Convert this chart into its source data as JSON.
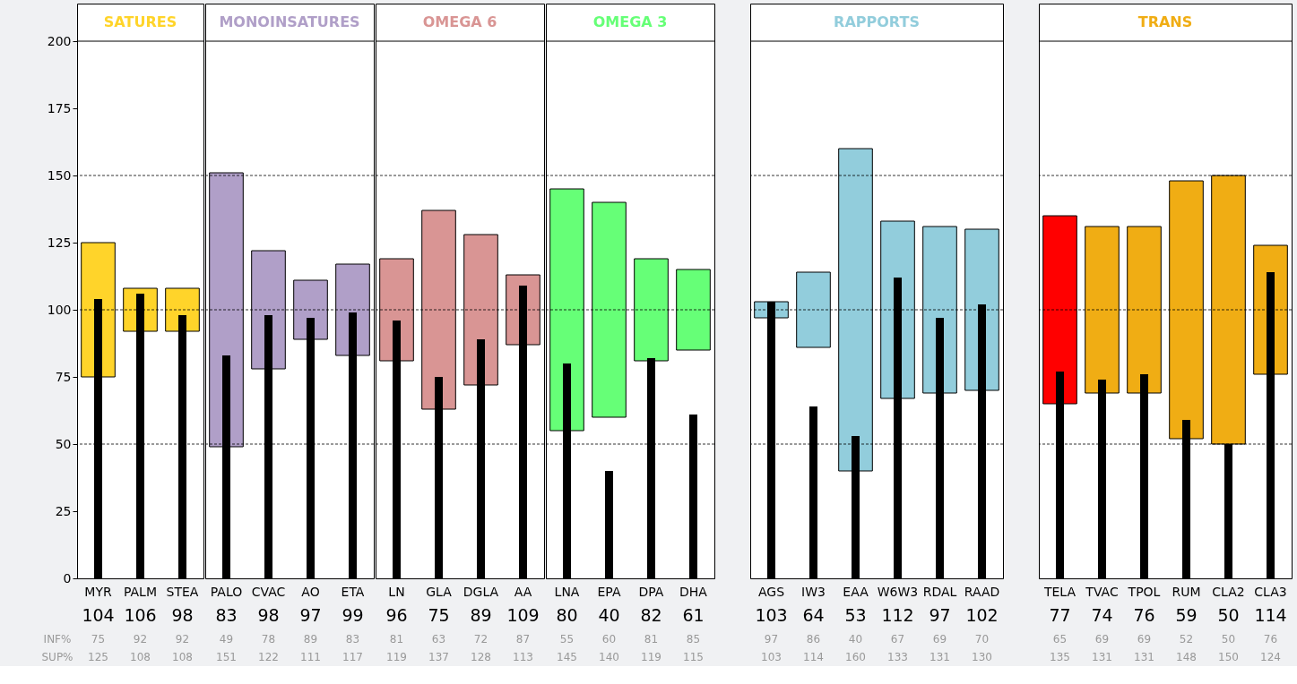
{
  "chart_data": [
    {
      "type": "bar",
      "title": "SATURES",
      "categories": [
        "MYR",
        "PALM",
        "STEA"
      ],
      "ylim": [
        0,
        200
      ],
      "yticks": [
        0,
        25,
        50,
        75,
        100,
        125,
        150,
        175,
        200
      ],
      "ref_lines": [
        {
          "axis": "y",
          "value": 50,
          "line_style": "dashed"
        },
        {
          "axis": "y",
          "value": 100,
          "line_style": "dashed"
        },
        {
          "axis": "y",
          "value": 150,
          "line_style": "dashed"
        }
      ],
      "series": [
        {
          "color": "#ffd42a",
          "base": [
            75,
            92,
            92
          ],
          "values": [
            50,
            16,
            16
          ]
        },
        {
          "color": "#000000",
          "values": [
            104,
            106,
            98
          ],
          "value_labels": [
            "104",
            "106",
            "98"
          ]
        }
      ],
      "annotations": [
        "INF%",
        "SUP%",
        "75",
        "92",
        "92",
        "125",
        "108",
        "108"
      ]
    },
    {
      "type": "bar",
      "title": "MONOINSATURES",
      "categories": [
        "PALO",
        "CVAC",
        "AO",
        "ETA"
      ],
      "ylim": [
        0,
        200
      ],
      "tick_labels": "x",
      "ref_lines": [
        {
          "axis": "y",
          "value": 50,
          "line_style": "dashed"
        },
        {
          "axis": "y",
          "value": 100,
          "line_style": "dashed"
        },
        {
          "axis": "y",
          "value": 150,
          "line_style": "dashed"
        }
      ],
      "series": [
        {
          "color": "#b09fc8",
          "base": [
            49,
            78,
            89,
            83
          ],
          "values": [
            102,
            44,
            22,
            34
          ]
        },
        {
          "color": "#000000",
          "values": [
            83,
            98,
            97,
            99
          ],
          "value_labels": [
            "83",
            "98",
            "97",
            "99"
          ]
        }
      ],
      "annotations": [
        "49",
        "78",
        "89",
        "83",
        "151",
        "122",
        "111",
        "117"
      ]
    },
    {
      "type": "bar",
      "title": "OMEGA 6",
      "categories": [
        "LN",
        "GLA",
        "DGLA",
        "AA"
      ],
      "ylim": [
        0,
        200
      ],
      "tick_labels": "x",
      "ref_lines": [
        {
          "axis": "y",
          "value": 50,
          "line_style": "dashed"
        },
        {
          "axis": "y",
          "value": 100,
          "line_style": "dashed"
        },
        {
          "axis": "y",
          "value": 150,
          "line_style": "dashed"
        }
      ],
      "series": [
        {
          "color": "#d99594",
          "base": [
            81,
            63,
            72,
            87
          ],
          "values": [
            38,
            74,
            56,
            26
          ]
        },
        {
          "color": "#000000",
          "values": [
            96,
            75,
            89,
            109
          ],
          "value_labels": [
            "96",
            "75",
            "89",
            "109"
          ]
        }
      ],
      "annotations": [
        "81",
        "63",
        "72",
        "87",
        "119",
        "137",
        "128",
        "113"
      ]
    },
    {
      "type": "bar",
      "title": "OMEGA 3",
      "categories": [
        "LNA",
        "EPA",
        "DPA",
        "DHA"
      ],
      "ylim": [
        0,
        200
      ],
      "tick_labels": "x",
      "ref_lines": [
        {
          "axis": "y",
          "value": 50,
          "line_style": "dashed"
        },
        {
          "axis": "y",
          "value": 100,
          "line_style": "dashed"
        },
        {
          "axis": "y",
          "value": 150,
          "line_style": "dashed"
        }
      ],
      "series": [
        {
          "color": "#66ff77",
          "base": [
            55,
            60,
            81,
            85
          ],
          "values": [
            90,
            80,
            38,
            30
          ]
        },
        {
          "color": "#000000",
          "values": [
            80,
            40,
            82,
            61
          ],
          "value_labels": [
            "80",
            "40",
            "82",
            "61"
          ]
        }
      ],
      "annotations": [
        "55",
        "60",
        "81",
        "85",
        "145",
        "140",
        "119",
        "115"
      ]
    },
    {
      "type": "bar",
      "title": "RAPPORTS",
      "categories": [
        "AGS",
        "IW3",
        "EAA",
        "W6W3",
        "RDAL",
        "RAAD"
      ],
      "ylim": [
        0,
        200
      ],
      "tick_labels": "x",
      "ref_lines": [
        {
          "axis": "y",
          "value": 50,
          "line_style": "dashed"
        },
        {
          "axis": "y",
          "value": 100,
          "line_style": "dashed"
        },
        {
          "axis": "y",
          "value": 150,
          "line_style": "dashed"
        }
      ],
      "series": [
        {
          "color": "#92cddc",
          "base": [
            97,
            86,
            40,
            67,
            69,
            70
          ],
          "values": [
            6,
            28,
            120,
            66,
            62,
            60
          ]
        },
        {
          "color": "#000000",
          "values": [
            103,
            64,
            53,
            112,
            97,
            102
          ],
          "value_labels": [
            "103",
            "64",
            "53",
            "112",
            "97",
            "102"
          ]
        }
      ],
      "annotations": [
        "97",
        "86",
        "40",
        "67",
        "69",
        "70",
        "103",
        "114",
        "160",
        "133",
        "131",
        "130"
      ]
    },
    {
      "type": "bar",
      "title": "TRANS",
      "categories": [
        "TELA",
        "TVAC",
        "TPOL",
        "RUM",
        "CLA2",
        "CLA3"
      ],
      "ylim": [
        0,
        200
      ],
      "tick_labels": "x",
      "ref_lines": [
        {
          "axis": "y",
          "value": 50,
          "line_style": "dashed"
        },
        {
          "axis": "y",
          "value": 100,
          "line_style": "dashed"
        },
        {
          "axis": "y",
          "value": 150,
          "line_style": "dashed"
        }
      ],
      "series": [
        {
          "colors": [
            "#ff0000",
            "#f0ad14",
            "#f0ad14",
            "#f0ad14",
            "#f0ad14",
            "#f0ad14"
          ],
          "base": [
            65,
            69,
            69,
            52,
            50,
            76
          ],
          "values": [
            70,
            62,
            62,
            96,
            100,
            48
          ]
        },
        {
          "color": "#000000",
          "values": [
            77,
            74,
            76,
            59,
            50,
            114
          ],
          "value_labels": [
            "77",
            "74",
            "76",
            "59",
            "50",
            "114"
          ]
        }
      ],
      "annotations": [
        "65",
        "69",
        "69",
        "52",
        "50",
        "76",
        "135",
        "131",
        "131",
        "148",
        "150",
        "124"
      ]
    }
  ]
}
